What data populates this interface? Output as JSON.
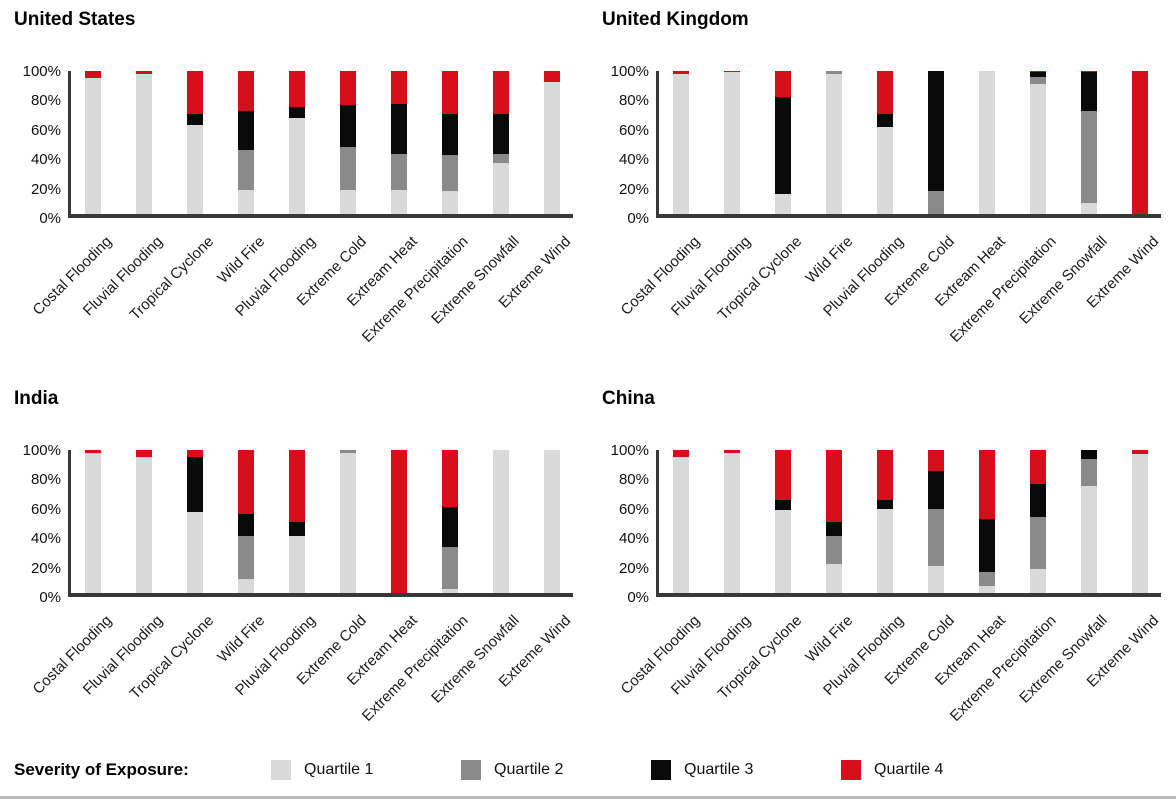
{
  "legend": {
    "title": "Severity of Exposure:",
    "position": "bottom-shared",
    "items": [
      {
        "label": "Quartile 1",
        "color": "#d9d9d9"
      },
      {
        "label": "Quartile 2",
        "color": "#8a8a8a"
      },
      {
        "label": "Quartile 3",
        "color": "#0a0a0a"
      },
      {
        "label": "Quartile 4",
        "color": "#d60e1b"
      }
    ]
  },
  "chart_data": [
    {
      "type": "bar",
      "stacked": true,
      "title": "United States",
      "xlabel": "",
      "ylabel": "",
      "ylim": [
        0,
        100
      ],
      "grid": false,
      "y_ticks": [
        "100%",
        "80%",
        "60%",
        "40%",
        "20%",
        "0%"
      ],
      "categories": [
        "Costal Flooding",
        "Fluvial Flooding",
        "Tropical Cyclone",
        "Wild Fire",
        "Pluvial Flooding",
        "Extreme Cold",
        "Extream Heat",
        "Extreme Precipitation",
        "Extreme Snowfall",
        "Extreme Wind"
      ],
      "series": [
        {
          "name": "Quartile 1",
          "color": "#d9d9d9",
          "values": [
            95,
            98,
            62,
            17,
            67,
            17,
            17,
            16,
            36,
            92
          ]
        },
        {
          "name": "Quartile 2",
          "color": "#8a8a8a",
          "values": [
            0,
            0,
            0,
            28,
            0,
            30,
            25,
            25,
            6,
            0
          ]
        },
        {
          "name": "Quartile 3",
          "color": "#0a0a0a",
          "values": [
            0,
            0,
            8,
            27,
            8,
            29,
            35,
            29,
            28,
            0
          ]
        },
        {
          "name": "Quartile 4",
          "color": "#d60e1b",
          "values": [
            5,
            2,
            30,
            28,
            25,
            24,
            23,
            30,
            30,
            8
          ]
        }
      ]
    },
    {
      "type": "bar",
      "stacked": true,
      "title": "United Kingdom",
      "xlabel": "",
      "ylabel": "",
      "ylim": [
        0,
        100
      ],
      "grid": false,
      "y_ticks": [
        "100%",
        "80%",
        "60%",
        "40%",
        "20%",
        "0%"
      ],
      "categories": [
        "Costal Flooding",
        "Fluvial Flooding",
        "Tropical Cyclone",
        "Wild Fire",
        "Pluvial Flooding",
        "Extreme Cold",
        "Extream Heat",
        "Extreme Precipitation",
        "Extreme Snowfall",
        "Extreme Wind"
      ],
      "series": [
        {
          "name": "Quartile 1",
          "color": "#d9d9d9",
          "values": [
            98,
            99,
            14,
            98,
            61,
            0,
            100,
            91,
            8,
            0
          ]
        },
        {
          "name": "Quartile 2",
          "color": "#8a8a8a",
          "values": [
            0,
            0,
            0,
            2,
            0,
            16,
            0,
            5,
            64,
            0
          ]
        },
        {
          "name": "Quartile 3",
          "color": "#0a0a0a",
          "values": [
            0,
            0,
            68,
            0,
            9,
            84,
            0,
            3,
            27,
            0
          ]
        },
        {
          "name": "Quartile 4",
          "color": "#d60e1b",
          "values": [
            2,
            1,
            18,
            0,
            30,
            0,
            0,
            1,
            1,
            100
          ]
        }
      ]
    },
    {
      "type": "bar",
      "stacked": true,
      "title": "India",
      "xlabel": "",
      "ylabel": "",
      "ylim": [
        0,
        100
      ],
      "grid": false,
      "y_ticks": [
        "100%",
        "80%",
        "60%",
        "40%",
        "20%",
        "0%"
      ],
      "categories": [
        "Costal Flooding",
        "Fluvial Flooding",
        "Tropical Cyclone",
        "Wild Fire",
        "Pluvial Flooding",
        "Extreme Cold",
        "Extream Heat",
        "Extreme Precipitation",
        "Extreme Snowfall",
        "Extreme Wind"
      ],
      "series": [
        {
          "name": "Quartile 1",
          "color": "#d9d9d9",
          "values": [
            98,
            95,
            57,
            10,
            40,
            98,
            0,
            3,
            100,
            100
          ]
        },
        {
          "name": "Quartile 2",
          "color": "#8a8a8a",
          "values": [
            0,
            0,
            0,
            30,
            0,
            2,
            0,
            29,
            0,
            0
          ]
        },
        {
          "name": "Quartile 3",
          "color": "#0a0a0a",
          "values": [
            0,
            0,
            38,
            15,
            10,
            0,
            0,
            28,
            0,
            0
          ]
        },
        {
          "name": "Quartile 4",
          "color": "#d60e1b",
          "values": [
            2,
            5,
            5,
            45,
            50,
            0,
            100,
            40,
            0,
            0
          ]
        }
      ]
    },
    {
      "type": "bar",
      "stacked": true,
      "title": "China",
      "xlabel": "",
      "ylabel": "",
      "ylim": [
        0,
        100
      ],
      "grid": false,
      "y_ticks": [
        "100%",
        "80%",
        "60%",
        "40%",
        "20%",
        "0%"
      ],
      "categories": [
        "Costal Flooding",
        "Fluvial Flooding",
        "Tropical Cyclone",
        "Wild Fire",
        "Pluvial Flooding",
        "Extreme Cold",
        "Extream Heat",
        "Extreme Precipitation",
        "Extreme Snowfall",
        "Extreme Wind"
      ],
      "series": [
        {
          "name": "Quartile 1",
          "color": "#d9d9d9",
          "values": [
            95,
            98,
            58,
            20,
            59,
            19,
            5,
            17,
            75,
            97
          ]
        },
        {
          "name": "Quartile 2",
          "color": "#8a8a8a",
          "values": [
            0,
            0,
            0,
            20,
            0,
            40,
            10,
            36,
            19,
            0
          ]
        },
        {
          "name": "Quartile 3",
          "color": "#0a0a0a",
          "values": [
            0,
            0,
            7,
            10,
            6,
            26,
            37,
            23,
            6,
            0
          ]
        },
        {
          "name": "Quartile 4",
          "color": "#d60e1b",
          "values": [
            5,
            2,
            35,
            50,
            35,
            15,
            48,
            24,
            0,
            3
          ]
        }
      ]
    }
  ]
}
